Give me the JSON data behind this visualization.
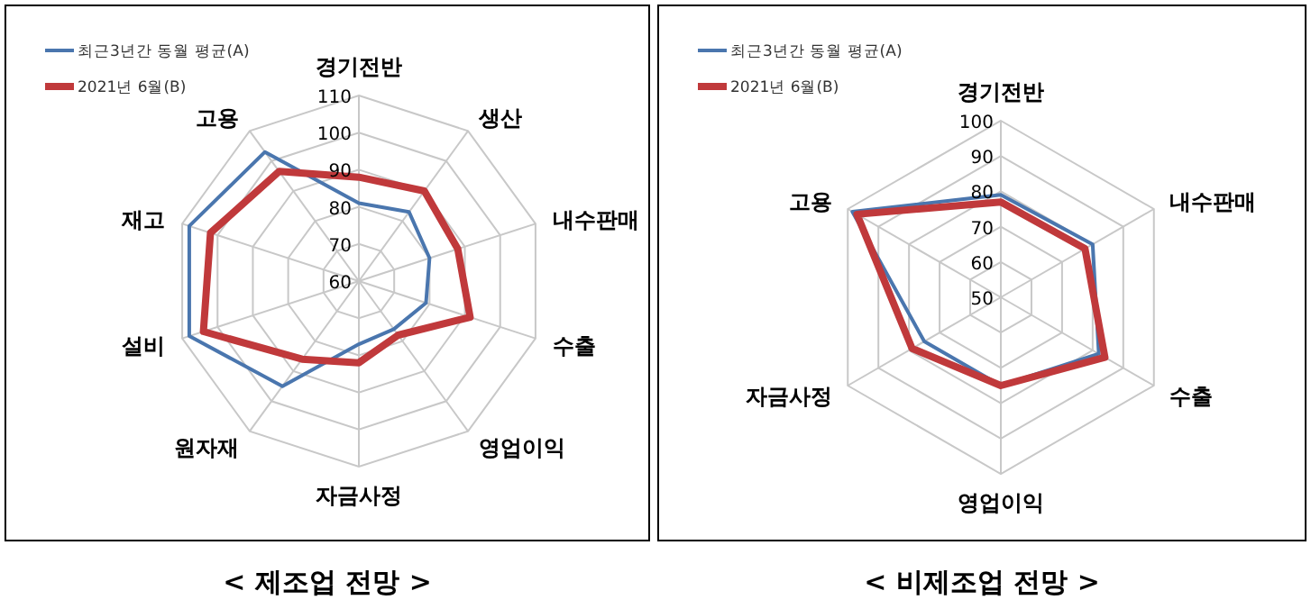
{
  "chart_data": [
    {
      "type": "radar",
      "title": "< 제조업 전망 >",
      "categories": [
        "경기전반",
        "생산",
        "내수판매",
        "수출",
        "영업이익",
        "자금사정",
        "원자재",
        "설비",
        "재고",
        "고용"
      ],
      "ylim": [
        60,
        110
      ],
      "yticks": [
        60,
        70,
        80,
        90,
        100,
        110
      ],
      "grid": true,
      "legend": "top left",
      "series": [
        {
          "name": "최근3년간 동월 평균(A)",
          "color": "#4a76ae",
          "values": [
            81,
            83,
            80,
            79,
            76,
            77,
            95,
            108,
            108,
            103
          ]
        },
        {
          "name": "2021년 6월(B)",
          "color": "#c0393b",
          "values": [
            88,
            90,
            88,
            91.5,
            78,
            82,
            86,
            104,
            102,
            96.5
          ]
        }
      ]
    },
    {
      "type": "radar",
      "title": "< 비제조업 전망 >",
      "categories": [
        "경기전반",
        "내수판매",
        "수출",
        "영업이익",
        "자금사정",
        "고용"
      ],
      "ylim": [
        50,
        100
      ],
      "yticks": [
        50,
        60,
        70,
        80,
        90,
        100
      ],
      "grid": true,
      "legend": "top left",
      "series": [
        {
          "name": "최근3년간 동월 평균(A)",
          "color": "#4a76ae",
          "values": [
            79,
            80,
            82,
            75,
            75,
            98.5
          ]
        },
        {
          "name": "2021년 6월(B)",
          "color": "#c0393b",
          "values": [
            77,
            77.5,
            84,
            75,
            79,
            97
          ]
        }
      ]
    }
  ]
}
